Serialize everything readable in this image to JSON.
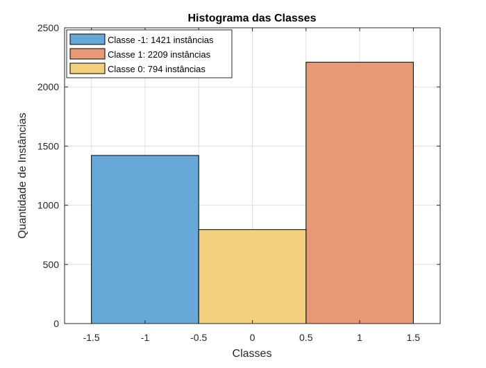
{
  "chart_data": {
    "type": "bar",
    "title": "Histograma das Classes",
    "xlabel": "Classes",
    "ylabel": "Quantidade de Instâncias",
    "xlim": [
      -1.75,
      1.75
    ],
    "ylim": [
      0,
      2500
    ],
    "xticks": [
      -1.5,
      -1,
      -0.5,
      0,
      0.5,
      1,
      1.5
    ],
    "xtick_labels": [
      "-1.5",
      "-1",
      "-0.5",
      "0",
      "0.5",
      "1",
      "1.5"
    ],
    "yticks": [
      0,
      500,
      1000,
      1500,
      2000,
      2500
    ],
    "ytick_labels": [
      "0",
      "500",
      "1000",
      "1500",
      "2000",
      "2500"
    ],
    "grid": true,
    "legend_position": "top-left",
    "series": [
      {
        "name": "Classe -1: 1421 instâncias",
        "x_start": -1.5,
        "x_end": -0.5,
        "value": 1421,
        "color": "#66a9d8"
      },
      {
        "name": "Classe 1: 2209 instâncias",
        "x_start": 0.5,
        "x_end": 1.5,
        "value": 2209,
        "color": "#e89a77"
      },
      {
        "name": "Classe 0: 794 instâncias",
        "x_start": -0.5,
        "x_end": 0.5,
        "value": 794,
        "color": "#f2d07e"
      }
    ]
  }
}
